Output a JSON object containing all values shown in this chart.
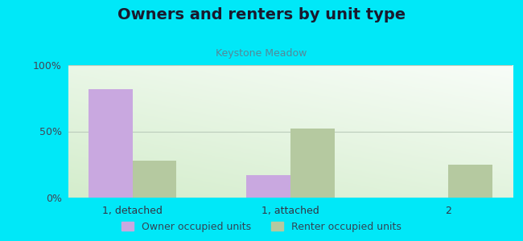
{
  "title": "Owners and renters by unit type",
  "subtitle": "Keystone Meadow",
  "categories": [
    "1, detached",
    "1, attached",
    "2"
  ],
  "owner_values": [
    82,
    17,
    0
  ],
  "renter_values": [
    28,
    52,
    25
  ],
  "owner_color": "#c9a8e0",
  "renter_color": "#b5c9a0",
  "outer_background": "#00e8f8",
  "ylim": [
    0,
    100
  ],
  "yticks": [
    0,
    50,
    100
  ],
  "ytick_labels": [
    "0%",
    "50%",
    "100%"
  ],
  "title_fontsize": 14,
  "subtitle_fontsize": 9,
  "title_color": "#1a1a2e",
  "subtitle_color": "#558899",
  "legend_labels": [
    "Owner occupied units",
    "Renter occupied units"
  ],
  "bar_width": 0.28,
  "grid_color": "#bbccbb"
}
